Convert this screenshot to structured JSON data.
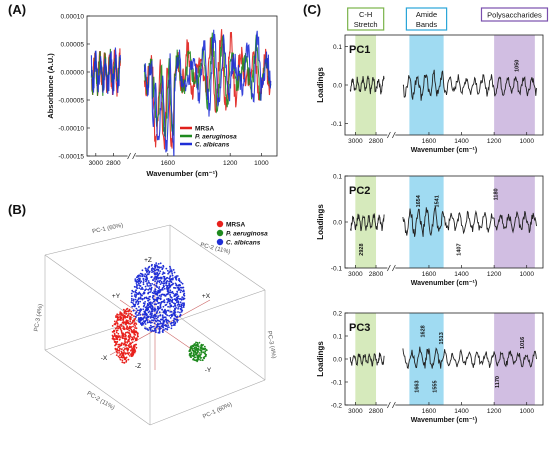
{
  "panel_labels": {
    "a": "(A)",
    "b": "(B)",
    "c": "(C)"
  },
  "chart_data": [
    {
      "id": "A",
      "type": "line",
      "ylabel": "Absorbance (A.U.)",
      "xlabel": "Wavenumber (cm⁻¹)",
      "xlim": [
        3100,
        900
      ],
      "ylim": [
        -0.00015,
        0.0001
      ],
      "x_axis_break": [
        2650,
        1800
      ],
      "yticks": [
        "0.00010",
        "0.00005",
        "0.00000",
        "-0.00005",
        "-0.00010",
        "-0.00015"
      ],
      "ytick_values": [
        0.0001,
        5e-05,
        0,
        -5e-05,
        -0.0001,
        -0.00015
      ],
      "xticks": [
        "3000",
        "2800",
        "1600",
        "1200",
        "1000"
      ],
      "xtick_values": [
        3000,
        2800,
        1600,
        1200,
        1000
      ],
      "legend_position": "bottom-right",
      "series": [
        {
          "name": "MRSA",
          "italic": false,
          "color": "#e0201c",
          "amplitude": 0.00012,
          "phase": 0.0
        },
        {
          "name": "P. aeruginosa",
          "italic": true,
          "color": "#1f8a1f",
          "amplitude": 0.0001,
          "phase": 0.6
        },
        {
          "name": "C. albicans",
          "italic": true,
          "color": "#1f2ed6",
          "amplitude": 0.00013,
          "phase": 1.2
        }
      ]
    },
    {
      "id": "B",
      "type": "scatter",
      "axis_labels": [
        "PC-1 (60%)",
        "PC-2 (11%)",
        "PC-3 (4%)",
        "PC-2 (11%)",
        "PC-1 (60%)",
        "PC-3 (4%)"
      ],
      "direction_labels": [
        "+Z",
        "+X",
        "+Y",
        "-X",
        "-Z",
        "-Y"
      ],
      "legend_position": "top-right",
      "series": [
        {
          "name": "MRSA",
          "italic": false,
          "color": "#e8201c",
          "count": 420
        },
        {
          "name": "P. aeruginosa",
          "italic": true,
          "color": "#1f8a1f",
          "count": 150
        },
        {
          "name": "C. albicans",
          "italic": true,
          "color": "#1f2ed6",
          "count": 900
        }
      ]
    },
    {
      "id": "C1",
      "type": "line",
      "title": "PC1",
      "ylabel": "Loadings",
      "xlabel": "Wavenumber (cm⁻¹)",
      "xlim": [
        3100,
        900
      ],
      "x_axis_break": [
        2700,
        1800
      ],
      "ylim": [
        -0.13,
        0.13
      ],
      "yticks": [
        "0.1",
        "0.0",
        "-0.1"
      ],
      "ytick_values": [
        0.1,
        0,
        -0.1
      ],
      "xticks": [
        "3000",
        "2800",
        "1600",
        "1400",
        "1200",
        "1000"
      ],
      "xtick_values": [
        3000,
        2800,
        1600,
        1400,
        1200,
        1000
      ],
      "regions": [
        {
          "name": "C-H Stretch",
          "from": 3000,
          "to": 2800,
          "fill": "#cfe6b0",
          "border": "#7ab34a"
        },
        {
          "name": "Amide Bands",
          "from": 1720,
          "to": 1510,
          "fill": "#8fd5f0",
          "border": "#2aa5d8"
        },
        {
          "name": "Polysaccharides",
          "from": 1200,
          "to": 950,
          "fill": "#c9b3dd",
          "border": "#7a4fae"
        }
      ],
      "peak_labels": [
        {
          "x": 1050,
          "y": 0.05,
          "text": "1050"
        }
      ],
      "amplitude": 0.055
    },
    {
      "id": "C2",
      "type": "line",
      "title": "PC2",
      "ylabel": "Loadings",
      "xlabel": "Wavenumber (cm⁻¹)",
      "xlim": [
        3100,
        900
      ],
      "x_axis_break": [
        2700,
        1800
      ],
      "ylim": [
        -0.1,
        0.1
      ],
      "yticks": [
        "0.1",
        "0.0",
        "-0.1"
      ],
      "ytick_values": [
        0.1,
        0,
        -0.1
      ],
      "xticks": [
        "3000",
        "2800",
        "1600",
        "1400",
        "1200",
        "1000"
      ],
      "xtick_values": [
        3000,
        2800,
        1600,
        1400,
        1200,
        1000
      ],
      "regions": [
        {
          "name": "",
          "from": 3000,
          "to": 2800,
          "fill": "#cfe6b0",
          "border": "none"
        },
        {
          "name": "",
          "from": 1720,
          "to": 1510,
          "fill": "#8fd5f0",
          "border": "none"
        },
        {
          "name": "",
          "from": 1200,
          "to": 950,
          "fill": "#c9b3dd",
          "border": "none"
        }
      ],
      "peak_labels": [
        {
          "x": 1654,
          "y": 0.045,
          "text": "1654"
        },
        {
          "x": 1541,
          "y": 0.045,
          "text": "1541"
        },
        {
          "x": 1180,
          "y": 0.06,
          "text": "1180"
        },
        {
          "x": 2928,
          "y": -0.06,
          "text": "2928"
        },
        {
          "x": 1407,
          "y": -0.06,
          "text": "1407"
        }
      ],
      "amplitude": 0.045
    },
    {
      "id": "C3",
      "type": "line",
      "title": "PC3",
      "ylabel": "Loadings",
      "xlabel": "Wavenumber (cm⁻¹)",
      "xlim": [
        3100,
        900
      ],
      "x_axis_break": [
        2700,
        1800
      ],
      "ylim": [
        -0.2,
        0.2
      ],
      "yticks": [
        "0.2",
        "0.1",
        "0.0",
        "-0.1",
        "-0.2"
      ],
      "ytick_values": [
        0.2,
        0.1,
        0,
        -0.1,
        -0.2
      ],
      "xticks": [
        "3000",
        "2800",
        "1600",
        "1400",
        "1200",
        "1000"
      ],
      "xtick_values": [
        3000,
        2800,
        1600,
        1400,
        1200,
        1000
      ],
      "regions": [
        {
          "name": "",
          "from": 3000,
          "to": 2800,
          "fill": "#cfe6b0",
          "border": "none"
        },
        {
          "name": "",
          "from": 1720,
          "to": 1510,
          "fill": "#8fd5f0",
          "border": "none"
        },
        {
          "name": "",
          "from": 1200,
          "to": 950,
          "fill": "#c9b3dd",
          "border": "none"
        }
      ],
      "peak_labels": [
        {
          "x": 1628,
          "y": 0.12,
          "text": "1628"
        },
        {
          "x": 1513,
          "y": 0.09,
          "text": "1513"
        },
        {
          "x": 1016,
          "y": 0.07,
          "text": "1016"
        },
        {
          "x": 1663,
          "y": -0.12,
          "text": "1663"
        },
        {
          "x": 1555,
          "y": -0.12,
          "text": "1555"
        },
        {
          "x": 1170,
          "y": -0.1,
          "text": "1170"
        }
      ],
      "amplitude": 0.07
    }
  ]
}
